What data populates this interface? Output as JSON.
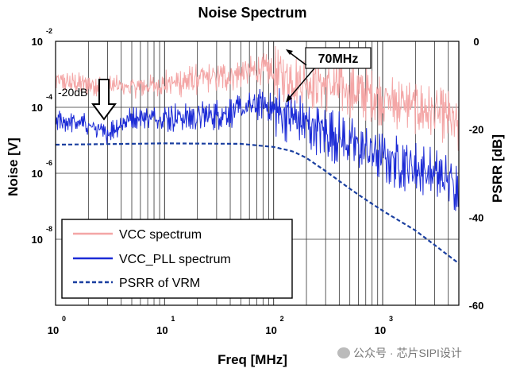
{
  "chart_data": {
    "type": "line",
    "title": "Noise Spectrum",
    "xlabel": "Freq [MHz]",
    "ylabel_left": "Noise [V]",
    "ylabel_right": "PSRR [dB]",
    "x_scale": "log",
    "xlim": [
      1,
      5000
    ],
    "ylim_left": [
      1e-10,
      0.01
    ],
    "ylim_right": [
      -60,
      0
    ],
    "x_ticks": [
      {
        "base": "10",
        "exp": "0",
        "value": 1
      },
      {
        "base": "10",
        "exp": "1",
        "value": 10
      },
      {
        "base": "10",
        "exp": "2",
        "value": 100
      },
      {
        "base": "10",
        "exp": "3",
        "value": 1000
      }
    ],
    "y_left_ticks": [
      {
        "base": "10",
        "exp": "-2",
        "value": 0.01
      },
      {
        "base": "10",
        "exp": "-4",
        "value": 0.0001
      },
      {
        "base": "10",
        "exp": "-6",
        "value": 1e-06
      },
      {
        "base": "10",
        "exp": "-8",
        "value": 1e-08
      }
    ],
    "y_right_ticks": [
      "0",
      "-20",
      "-40",
      "-60"
    ],
    "series": [
      {
        "name": "VCC spectrum",
        "color": "#f4a6a6",
        "axis": "left",
        "style": "noisy",
        "x": [
          1,
          2,
          5,
          10,
          20,
          40,
          60,
          80,
          100,
          150,
          200,
          400,
          700,
          1000,
          2000,
          4000,
          5000
        ],
        "values": [
          0.0006,
          0.0005,
          0.0004,
          0.0005,
          0.0007,
          0.0009,
          0.0012,
          0.0015,
          0.0011,
          0.0007,
          0.0006,
          0.0004,
          0.00025,
          0.00018,
          0.0001,
          5e-05,
          2e-05
        ]
      },
      {
        "name": "VCC_PLL spectrum",
        "color": "#1c2bd6",
        "axis": "left",
        "style": "noisy",
        "x": [
          1,
          2,
          2.8,
          5,
          10,
          20,
          40,
          60,
          80,
          100,
          150,
          200,
          400,
          700,
          1000,
          2000,
          4000,
          5000
        ],
        "values": [
          4e-05,
          3e-05,
          1.5e-05,
          5e-05,
          5e-05,
          5e-05,
          7e-05,
          0.0001,
          0.00013,
          8e-05,
          5e-05,
          3e-05,
          1.2e-05,
          5e-06,
          3e-06,
          1.5e-06,
          6e-07,
          4e-07
        ]
      },
      {
        "name": "PSRR of VRM",
        "color": "#1a3fa0",
        "axis": "right",
        "style": "dashed",
        "x": [
          1,
          10,
          50,
          100,
          150,
          200,
          300,
          500,
          700,
          1000,
          2000,
          5000
        ],
        "values": [
          -23.5,
          -23.2,
          -23.3,
          -24,
          -25,
          -26.5,
          -29.5,
          -33.5,
          -36,
          -38.5,
          -43,
          -50.5
        ]
      }
    ],
    "legend": [
      "VCC spectrum",
      "VCC_PLL spectrum",
      "PSRR of VRM"
    ],
    "legend_position": "bottom-left",
    "annotations": [
      {
        "text": "70MHz",
        "x": 70,
        "arrow": true
      },
      {
        "text": "-20dB",
        "x": 2.2,
        "arrow": true
      }
    ],
    "grid": true
  },
  "watermark": "公众号 · 芯片SIPI设计"
}
